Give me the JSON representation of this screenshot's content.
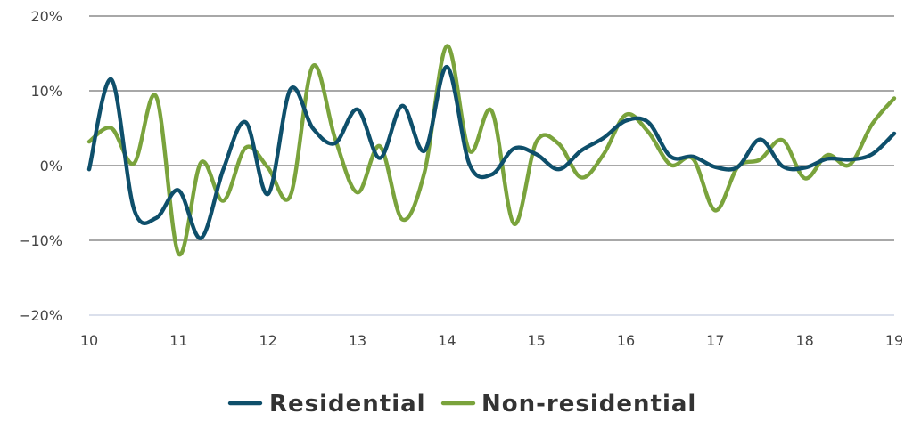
{
  "chart_data": {
    "type": "line",
    "title": "",
    "xlabel": "",
    "ylabel": "",
    "xlim": [
      10,
      19
    ],
    "ylim": [
      -20,
      20
    ],
    "x_ticks": [
      "10",
      "11",
      "12",
      "13",
      "14",
      "15",
      "16",
      "17",
      "18",
      "19"
    ],
    "y_ticks": [
      "20%",
      "10%",
      "0%",
      "−10%",
      "−20%"
    ],
    "y_tick_values": [
      20,
      10,
      0,
      -10,
      -20
    ],
    "grid": true,
    "legend": "bottom-center",
    "series": [
      {
        "name": "Residential",
        "color": "#0e4f6b",
        "x": [
          10.0,
          10.25,
          10.5,
          10.75,
          11.0,
          11.25,
          11.5,
          11.75,
          12.0,
          12.25,
          12.5,
          12.75,
          13.0,
          13.25,
          13.5,
          13.75,
          14.0,
          14.25,
          14.5,
          14.75,
          15.0,
          15.25,
          15.5,
          15.75,
          16.0,
          16.25,
          16.5,
          16.75,
          17.0,
          17.25,
          17.5,
          17.75,
          18.0,
          18.25,
          18.5,
          18.75,
          19.0
        ],
        "y": [
          -0.5,
          11.5,
          -5.8,
          -7.0,
          -3.3,
          -9.7,
          -0.5,
          5.8,
          -3.8,
          10.2,
          5.0,
          3.0,
          7.5,
          1.0,
          8.0,
          2.0,
          13.2,
          0.2,
          -1.2,
          2.3,
          1.5,
          -0.5,
          2.0,
          3.7,
          6.0,
          5.8,
          1.2,
          1.2,
          -0.2,
          -0.2,
          3.5,
          -0.1,
          -0.3,
          0.9,
          0.8,
          1.5,
          4.3
        ]
      },
      {
        "name": "Non-residential",
        "color": "#7aa33c",
        "x": [
          10.0,
          10.25,
          10.5,
          10.75,
          11.0,
          11.25,
          11.5,
          11.75,
          12.0,
          12.25,
          12.5,
          12.75,
          13.0,
          13.25,
          13.5,
          13.75,
          14.0,
          14.25,
          14.5,
          14.75,
          15.0,
          15.25,
          15.5,
          15.75,
          16.0,
          16.25,
          16.5,
          16.75,
          17.0,
          17.25,
          17.5,
          17.75,
          18.0,
          18.25,
          18.5,
          18.75,
          19.0
        ],
        "y": [
          3.2,
          5.0,
          0.3,
          9.2,
          -11.8,
          0.4,
          -4.7,
          2.4,
          -0.3,
          -4.0,
          13.3,
          3.6,
          -3.6,
          2.6,
          -7.2,
          -0.8,
          16.0,
          2.0,
          7.3,
          -7.8,
          3.2,
          2.9,
          -1.6,
          1.5,
          6.8,
          4.5,
          0.1,
          0.9,
          -6.0,
          -0.2,
          0.8,
          3.4,
          -1.7,
          1.4,
          0.1,
          5.5,
          9.0
        ]
      }
    ]
  }
}
